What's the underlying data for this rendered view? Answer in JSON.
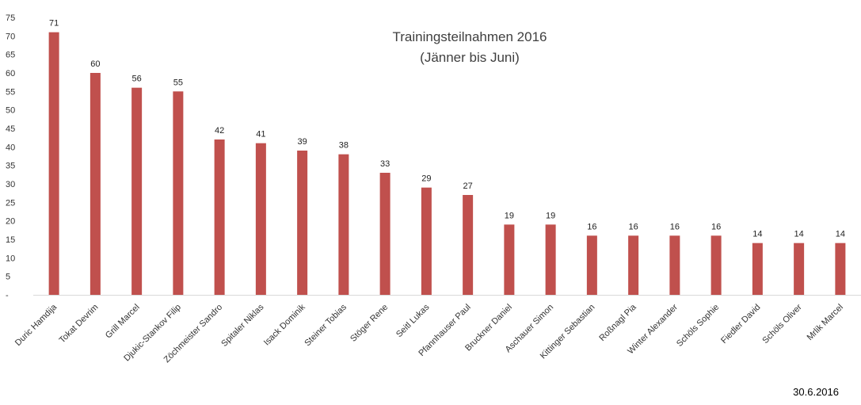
{
  "chart_data": {
    "type": "bar",
    "title": "Trainingsteilnahmen 2016",
    "subtitle": "(Jänner bis Juni)",
    "xlabel": "",
    "ylabel": "",
    "ylim": [
      0,
      75
    ],
    "yticks": [
      0,
      5,
      10,
      15,
      20,
      25,
      30,
      35,
      40,
      45,
      50,
      55,
      60,
      65,
      70,
      75
    ],
    "ytick_labels": [
      "-",
      "5",
      "10",
      "15",
      "20",
      "25",
      "30",
      "35",
      "40",
      "45",
      "50",
      "55",
      "60",
      "65",
      "70",
      "75"
    ],
    "grid": false,
    "legend": "none",
    "bar_color": "#c0504d",
    "categories": [
      "Duric Hamdija",
      "Tokat Devrim",
      "Grill Marcel",
      "Djukic-Stankov Filip",
      "Zöchmeister Sandro",
      "Spitaler Niklas",
      "Isack Dominik",
      "Steiner Tobias",
      "Stöger Rene",
      "Seitl Lukas",
      "Pfannhauser Paul",
      "Bruckner Daniel",
      "Aschauer Simon",
      "Kittinger Sebastian",
      "Roßnagl Pia",
      "Winter Alexander",
      "Schöls Sophie",
      "Fiedler David",
      "Schöls Oliver",
      "Mrlik Marcel"
    ],
    "values": [
      71,
      60,
      56,
      55,
      42,
      41,
      39,
      38,
      33,
      29,
      27,
      19,
      19,
      16,
      16,
      16,
      16,
      14,
      14,
      14
    ]
  },
  "footer": {
    "date": "30.6.2016"
  }
}
